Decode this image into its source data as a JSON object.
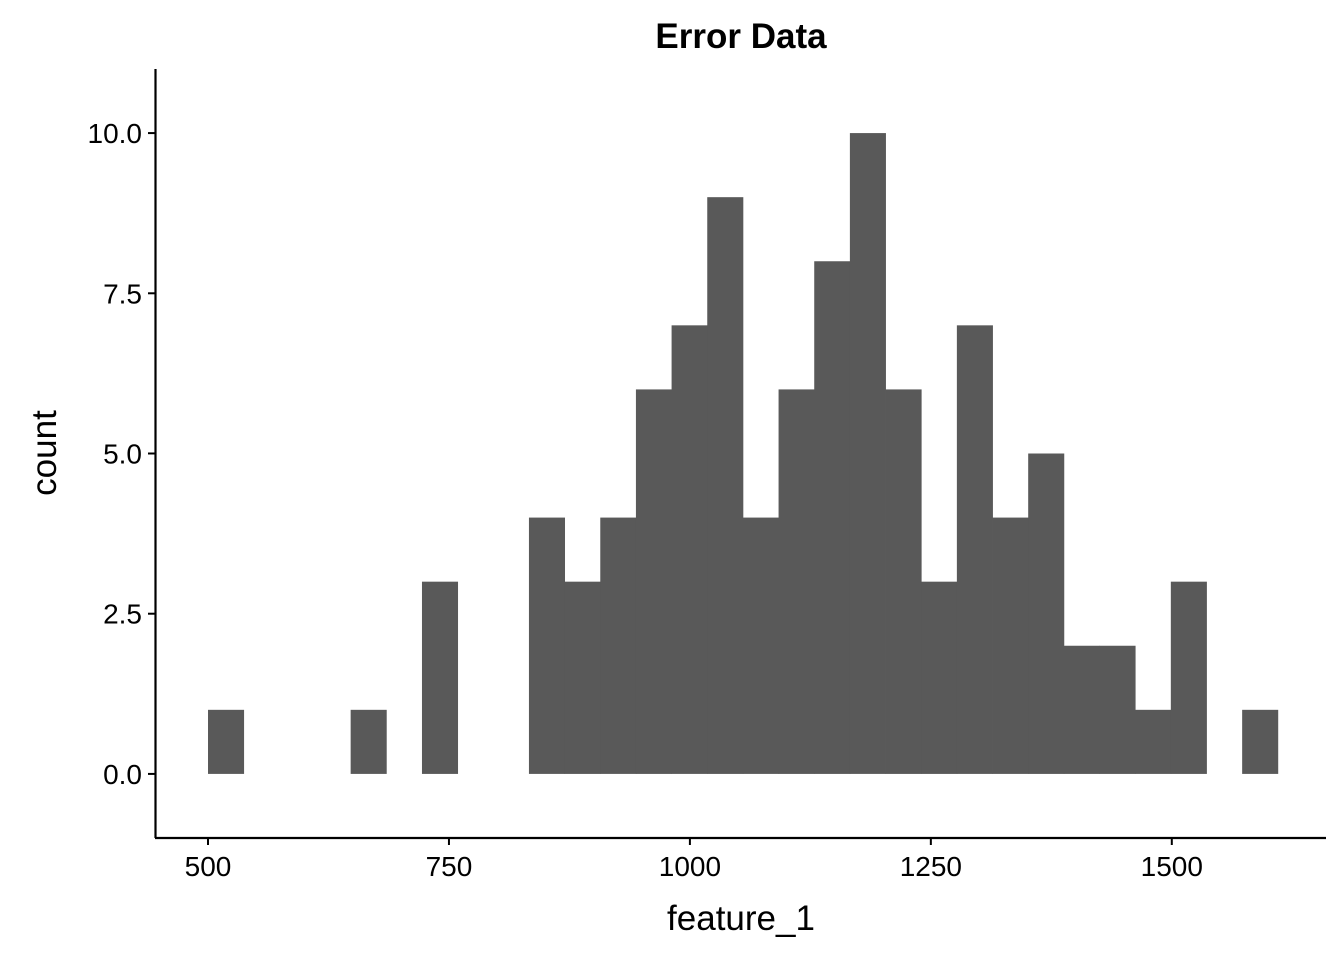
{
  "chart_data": {
    "type": "bar",
    "title": "Error Data",
    "xlabel": "feature_1",
    "ylabel": "count",
    "xlim": [
      445,
      1660
    ],
    "ylim": [
      -1,
      11
    ],
    "x_ticks": [
      {
        "value": 500,
        "label": "500"
      },
      {
        "value": 750,
        "label": "750"
      },
      {
        "value": 1000,
        "label": "1000"
      },
      {
        "value": 1250,
        "label": "1250"
      },
      {
        "value": 1500,
        "label": "1500"
      }
    ],
    "y_ticks": [
      {
        "value": 0,
        "label": "0.0"
      },
      {
        "value": 2.5,
        "label": "2.5"
      },
      {
        "value": 5,
        "label": "5.0"
      },
      {
        "value": 7.5,
        "label": "7.5"
      },
      {
        "value": 10,
        "label": "10.0"
      }
    ],
    "bin_width": 37,
    "bins": [
      {
        "x0": 500,
        "x1": 537,
        "count": 1
      },
      {
        "x0": 537,
        "x1": 574,
        "count": 0
      },
      {
        "x0": 574,
        "x1": 611,
        "count": 0
      },
      {
        "x0": 611,
        "x1": 648,
        "count": 0
      },
      {
        "x0": 648,
        "x1": 685,
        "count": 1
      },
      {
        "x0": 685,
        "x1": 722,
        "count": 0
      },
      {
        "x0": 722,
        "x1": 759,
        "count": 3
      },
      {
        "x0": 759,
        "x1": 796,
        "count": 0
      },
      {
        "x0": 796,
        "x1": 833,
        "count": 0
      },
      {
        "x0": 833,
        "x1": 870,
        "count": 4
      },
      {
        "x0": 870,
        "x1": 907,
        "count": 3
      },
      {
        "x0": 907,
        "x1": 944,
        "count": 4
      },
      {
        "x0": 944,
        "x1": 981,
        "count": 6
      },
      {
        "x0": 981,
        "x1": 1018,
        "count": 7
      },
      {
        "x0": 1018,
        "x1": 1055,
        "count": 9
      },
      {
        "x0": 1055,
        "x1": 1092,
        "count": 4
      },
      {
        "x0": 1092,
        "x1": 1129,
        "count": 6
      },
      {
        "x0": 1129,
        "x1": 1166,
        "count": 8
      },
      {
        "x0": 1166,
        "x1": 1203,
        "count": 10
      },
      {
        "x0": 1203,
        "x1": 1240,
        "count": 6
      },
      {
        "x0": 1240,
        "x1": 1277,
        "count": 3
      },
      {
        "x0": 1277,
        "x1": 1314,
        "count": 7
      },
      {
        "x0": 1314,
        "x1": 1351,
        "count": 4
      },
      {
        "x0": 1351,
        "x1": 1388,
        "count": 5
      },
      {
        "x0": 1388,
        "x1": 1425,
        "count": 2
      },
      {
        "x0": 1425,
        "x1": 1462,
        "count": 2
      },
      {
        "x0": 1462,
        "x1": 1499,
        "count": 1
      },
      {
        "x0": 1499,
        "x1": 1536,
        "count": 3
      },
      {
        "x0": 1536,
        "x1": 1573,
        "count": 0
      },
      {
        "x0": 1573,
        "x1": 1610,
        "count": 1
      }
    ],
    "bar_color": "#595959",
    "grid": false,
    "legend": "none"
  }
}
